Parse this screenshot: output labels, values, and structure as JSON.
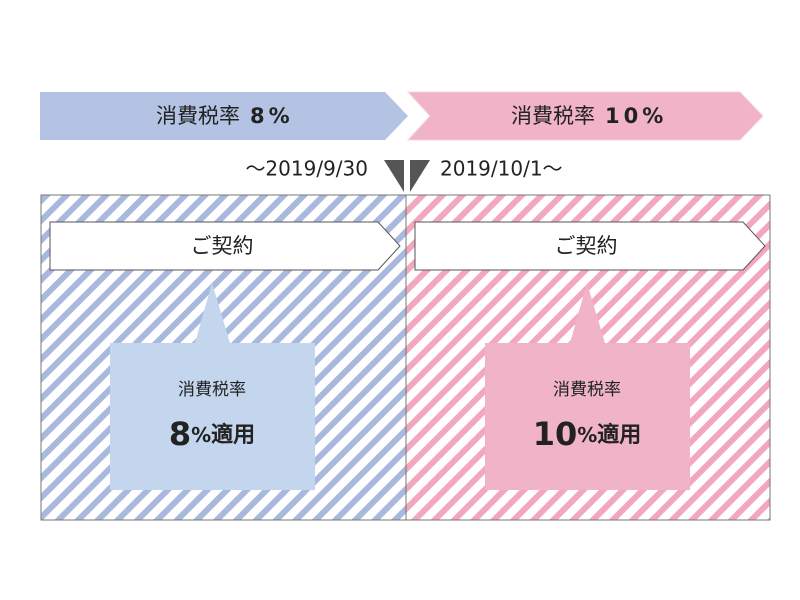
{
  "periods": [
    {
      "header_label": "消費税率",
      "header_rate": "8%",
      "date": "～2019/9/30",
      "contract": "ご契約",
      "box_label": "消費税率",
      "box_rate": "8",
      "box_unit": "%",
      "box_suffix": "適用"
    },
    {
      "header_label": "消費税率",
      "header_rate": "10%",
      "date": "2019/10/1～",
      "contract": "ご契約",
      "box_label": "消費税率",
      "box_rate": "10",
      "box_unit": "%",
      "box_suffix": "適用"
    }
  ]
}
